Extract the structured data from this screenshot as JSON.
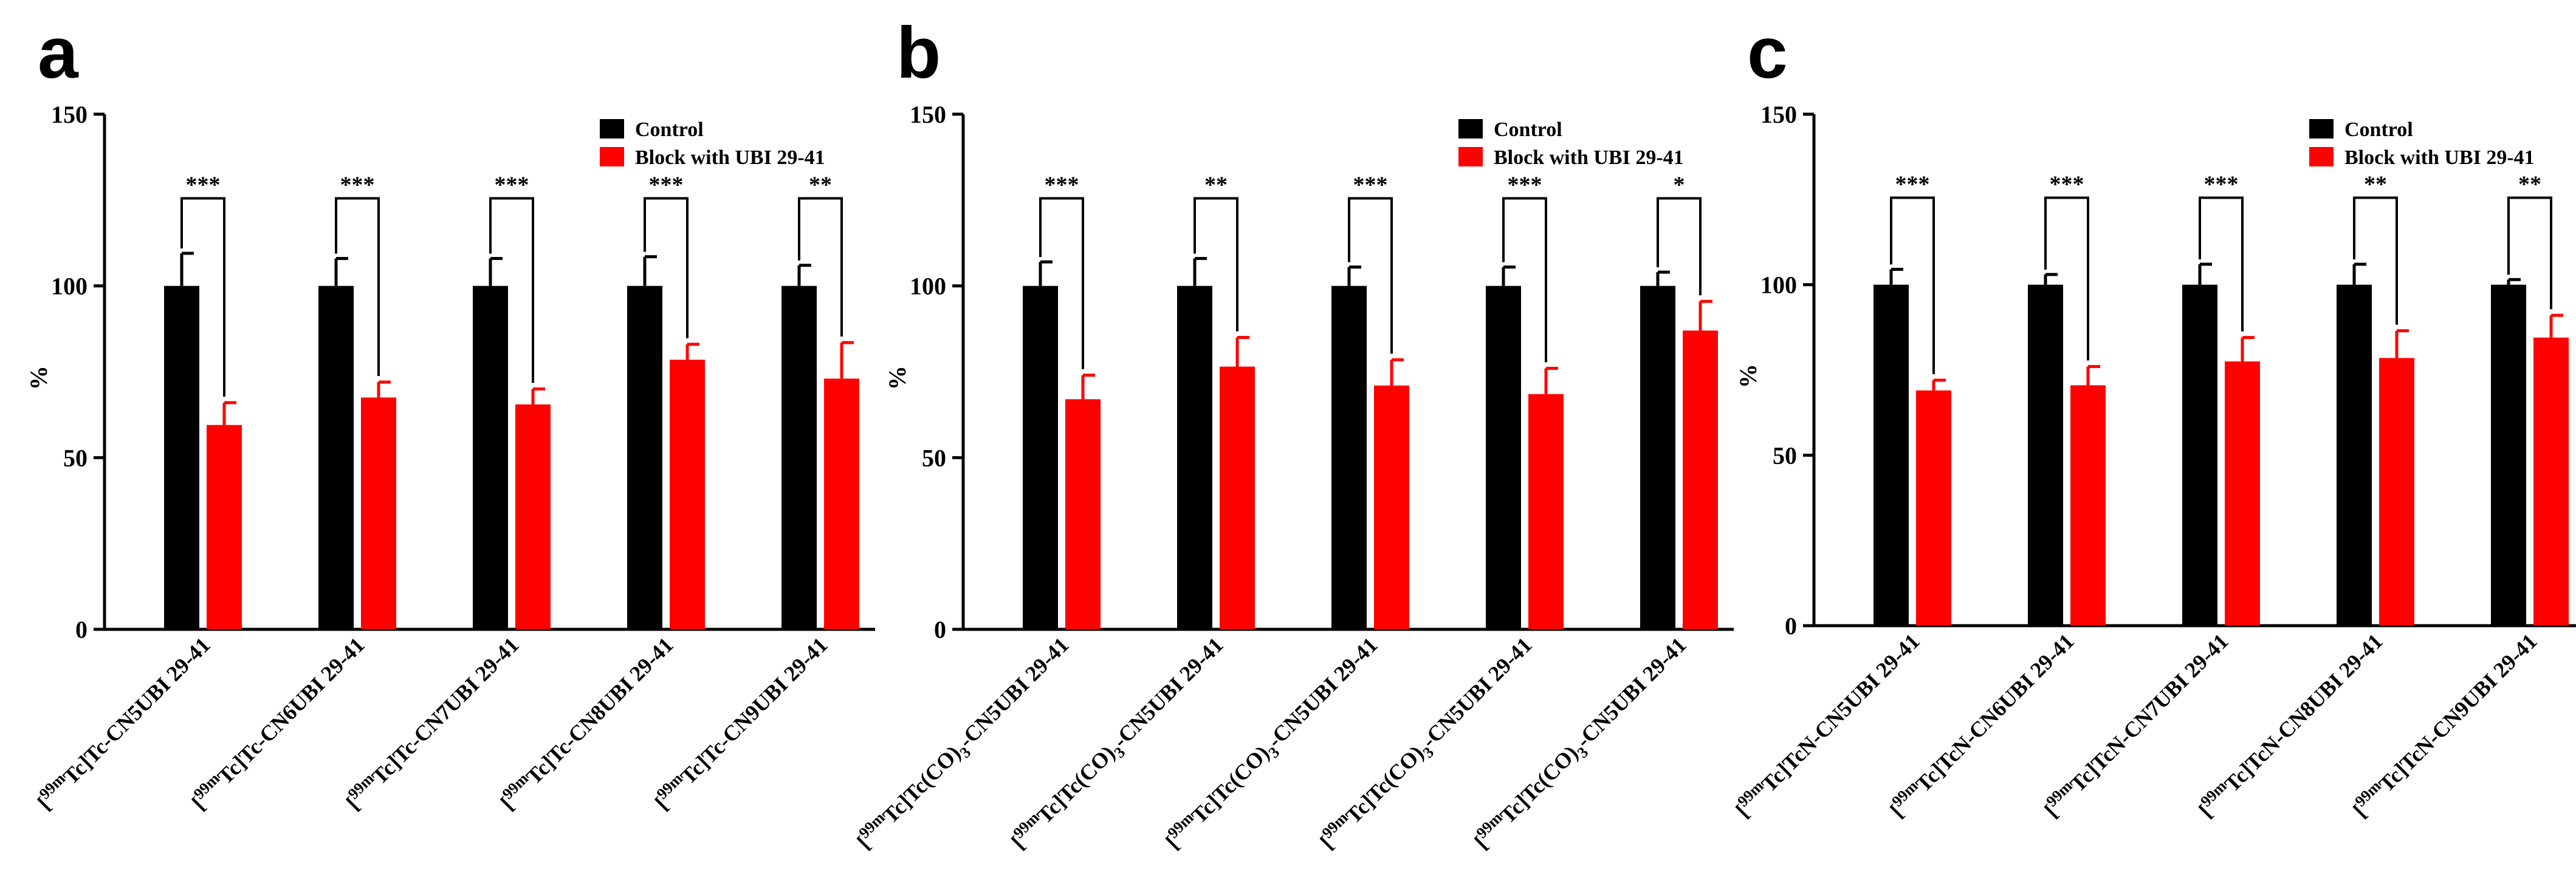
{
  "figure": {
    "colors": {
      "control": "#000000",
      "block": "#ff0000"
    }
  },
  "chart_data": [
    {
      "type": "bar",
      "panel": "a",
      "ylabel": "%",
      "ylim": [
        0,
        150
      ],
      "yticks": [
        0,
        50,
        100,
        150
      ],
      "categories": [
        {
          "prefix": "[",
          "sup": "99m",
          "rest": "Tc]Tc-CN5UBI 29-41"
        },
        {
          "prefix": "[",
          "sup": "99m",
          "rest": "Tc]Tc-CN6UBI 29-41"
        },
        {
          "prefix": "[",
          "sup": "99m",
          "rest": "Tc]Tc-CN7UBI 29-41"
        },
        {
          "prefix": "[",
          "sup": "99m",
          "rest": "Tc]Tc-CN8UBI 29-41"
        },
        {
          "prefix": "[",
          "sup": "99m",
          "rest": "Tc]Tc-CN9UBI 29-41"
        }
      ],
      "series": [
        {
          "name": "Control",
          "values": [
            100,
            100,
            100,
            100,
            100
          ],
          "errors": [
            9.5,
            8,
            8,
            8.5,
            6
          ]
        },
        {
          "name": "Block with UBI 29-41",
          "values": [
            59.5,
            67.5,
            65.5,
            78.5,
            73
          ],
          "errors": [
            6.5,
            4.5,
            4.5,
            4.5,
            10.5
          ]
        }
      ],
      "significance": [
        "***",
        "***",
        "***",
        "***",
        "**"
      ]
    },
    {
      "type": "bar",
      "panel": "b",
      "ylabel": "%",
      "ylim": [
        0,
        150
      ],
      "yticks": [
        0,
        50,
        100,
        150
      ],
      "categories": [
        {
          "prefix": "[",
          "sup": "99m",
          "rest": "Tc]Tc(CO)",
          "sub": "3",
          "rest2": "-CN5UBI 29-41"
        },
        {
          "prefix": "[",
          "sup": "99m",
          "rest": "Tc]Tc(CO)",
          "sub": "3",
          "rest2": "-CN5UBI 29-41"
        },
        {
          "prefix": "[",
          "sup": "99m",
          "rest": "Tc]Tc(CO)",
          "sub": "3",
          "rest2": "-CN5UBI 29-41"
        },
        {
          "prefix": "[",
          "sup": "99m",
          "rest": "Tc]Tc(CO)",
          "sub": "3",
          "rest2": "-CN5UBI 29-41"
        },
        {
          "prefix": "[",
          "sup": "99m",
          "rest": "Tc]Tc(CO)",
          "sub": "3",
          "rest2": "-CN5UBI 29-41"
        }
      ],
      "series": [
        {
          "name": "Control",
          "values": [
            100,
            100,
            100,
            100,
            100
          ],
          "errors": [
            7,
            8,
            5.5,
            5.5,
            4
          ]
        },
        {
          "name": "Block with UBI 29-41",
          "values": [
            67,
            76.5,
            71,
            68.5,
            87
          ],
          "errors": [
            7,
            8.5,
            7.5,
            7.5,
            8.5
          ]
        }
      ],
      "significance": [
        "***",
        "**",
        "***",
        "***",
        "*"
      ]
    },
    {
      "type": "bar",
      "panel": "c",
      "ylabel": "%",
      "ylim": [
        0,
        150
      ],
      "yticks": [
        0,
        50,
        100,
        150
      ],
      "categories": [
        {
          "prefix": "[",
          "sup": "99m",
          "rest": "Tc]TcN-CN5UBI 29-41"
        },
        {
          "prefix": "[",
          "sup": "99m",
          "rest": "Tc]TcN-CN6UBI 29-41"
        },
        {
          "prefix": "[",
          "sup": "99m",
          "rest": "Tc]TcN-CN7UBI 29-41"
        },
        {
          "prefix": "[",
          "sup": "99m",
          "rest": "Tc]TcN-CN8UBI 29-41"
        },
        {
          "prefix": "[",
          "sup": "99m",
          "rest": "Tc]TcN-CN9UBI 29-41"
        }
      ],
      "series": [
        {
          "name": "Control",
          "values": [
            100,
            100,
            100,
            100,
            100
          ],
          "errors": [
            4.5,
            3,
            6,
            6,
            1.5
          ]
        },
        {
          "name": "Block with UBI 29-41",
          "values": [
            69,
            70.5,
            77.5,
            78.5,
            84.5
          ],
          "errors": [
            3,
            5.5,
            7,
            8,
            6.5
          ]
        }
      ],
      "significance": [
        "***",
        "***",
        "***",
        "**",
        "**"
      ]
    }
  ]
}
